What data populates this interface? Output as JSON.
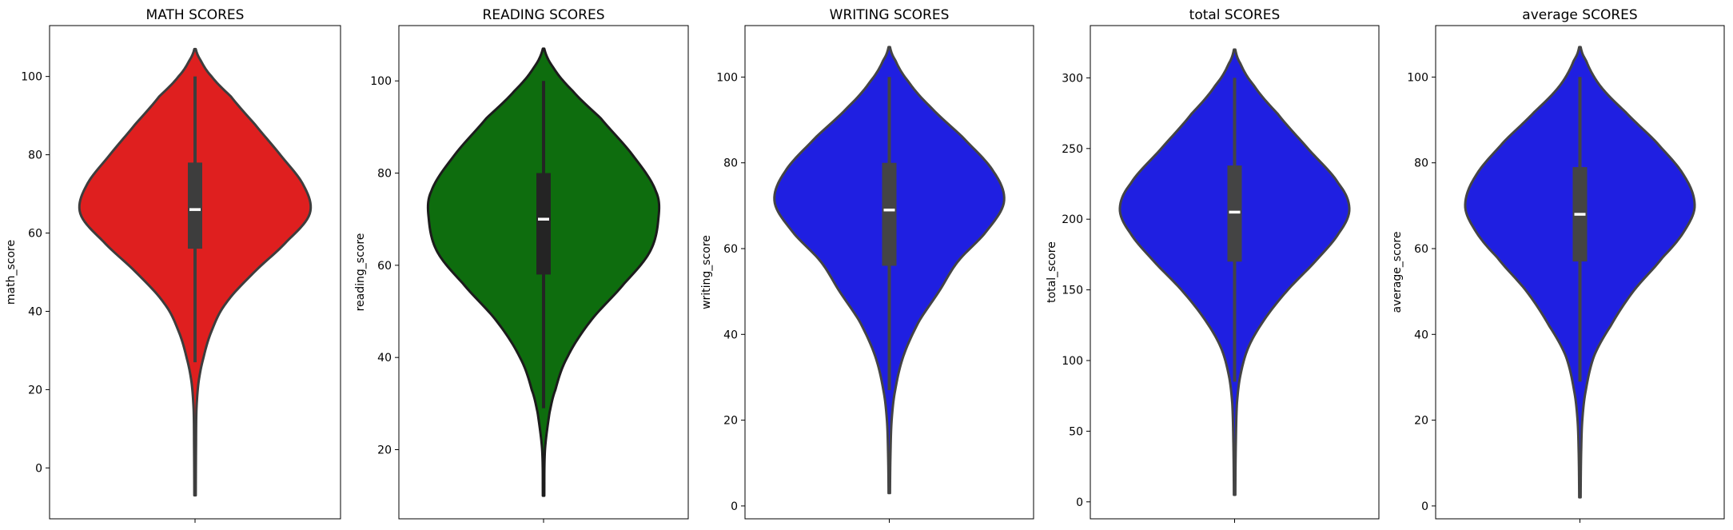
{
  "chart_data": [
    {
      "type": "violin",
      "title": "MATH SCORES",
      "ylabel": "math_score",
      "ylim": [
        -13,
        113
      ],
      "yticks": [
        0,
        20,
        40,
        60,
        80,
        100
      ],
      "color": "#df1f1f",
      "edge_color": "#3d3d3d",
      "box_color": "#3d3d3d",
      "violin": {
        "min": -7,
        "max": 107
      },
      "whisker": {
        "low": 27,
        "high": 100
      },
      "box": {
        "q1": 56,
        "median": 66,
        "q3": 78
      },
      "density": [
        [
          -7,
          0.006
        ],
        [
          5,
          0.008
        ],
        [
          15,
          0.012
        ],
        [
          22,
          0.03
        ],
        [
          28,
          0.07
        ],
        [
          35,
          0.14
        ],
        [
          42,
          0.26
        ],
        [
          50,
          0.5
        ],
        [
          58,
          0.78
        ],
        [
          65,
          0.97
        ],
        [
          72,
          0.92
        ],
        [
          80,
          0.72
        ],
        [
          88,
          0.5
        ],
        [
          95,
          0.3
        ],
        [
          100,
          0.14
        ],
        [
          104,
          0.05
        ],
        [
          107,
          0.006
        ]
      ]
    },
    {
      "type": "violin",
      "title": "READING SCORES",
      "ylabel": "reading_score",
      "ylim": [
        5,
        112
      ],
      "yticks": [
        20,
        40,
        60,
        80,
        100
      ],
      "color": "#0e6d0e",
      "edge_color": "#1c1c1c",
      "box_color": "#242424",
      "violin": {
        "min": 10,
        "max": 107
      },
      "whisker": {
        "low": 29,
        "high": 100
      },
      "box": {
        "q1": 58,
        "median": 70,
        "q3": 80
      },
      "density": [
        [
          10,
          0.006
        ],
        [
          20,
          0.012
        ],
        [
          28,
          0.05
        ],
        [
          33,
          0.1
        ],
        [
          40,
          0.2
        ],
        [
          48,
          0.4
        ],
        [
          56,
          0.68
        ],
        [
          63,
          0.9
        ],
        [
          70,
          0.97
        ],
        [
          76,
          0.95
        ],
        [
          84,
          0.75
        ],
        [
          92,
          0.48
        ],
        [
          98,
          0.24
        ],
        [
          103,
          0.08
        ],
        [
          107,
          0.006
        ]
      ]
    },
    {
      "type": "violin",
      "title": "WRITING SCORES",
      "ylabel": "writing_score",
      "ylim": [
        -3,
        112
      ],
      "yticks": [
        0,
        20,
        40,
        60,
        80,
        100
      ],
      "color": "#1f1fe1",
      "edge_color": "#444444",
      "box_color": "#444444",
      "violin": {
        "min": 3,
        "max": 107
      },
      "whisker": {
        "low": 27,
        "high": 100
      },
      "box": {
        "q1": 56,
        "median": 69,
        "q3": 80
      },
      "density": [
        [
          3,
          0.006
        ],
        [
          12,
          0.01
        ],
        [
          20,
          0.02
        ],
        [
          27,
          0.05
        ],
        [
          35,
          0.12
        ],
        [
          43,
          0.25
        ],
        [
          50,
          0.42
        ],
        [
          57,
          0.58
        ],
        [
          64,
          0.82
        ],
        [
          71,
          0.97
        ],
        [
          78,
          0.88
        ],
        [
          86,
          0.62
        ],
        [
          93,
          0.35
        ],
        [
          99,
          0.16
        ],
        [
          104,
          0.05
        ],
        [
          107,
          0.006
        ]
      ]
    },
    {
      "type": "violin",
      "title": "total SCORES",
      "ylabel": "total_score",
      "ylim": [
        -12,
        337
      ],
      "yticks": [
        0,
        50,
        100,
        150,
        200,
        250,
        300
      ],
      "color": "#1f1fe1",
      "edge_color": "#444444",
      "box_color": "#444444",
      "violin": {
        "min": 5,
        "max": 320
      },
      "whisker": {
        "low": 85,
        "high": 300
      },
      "box": {
        "q1": 170,
        "median": 205,
        "q3": 238
      },
      "density": [
        [
          5,
          0.006
        ],
        [
          40,
          0.01
        ],
        [
          70,
          0.02
        ],
        [
          90,
          0.05
        ],
        [
          110,
          0.12
        ],
        [
          130,
          0.26
        ],
        [
          150,
          0.45
        ],
        [
          170,
          0.68
        ],
        [
          190,
          0.88
        ],
        [
          207,
          0.97
        ],
        [
          225,
          0.88
        ],
        [
          250,
          0.62
        ],
        [
          275,
          0.36
        ],
        [
          295,
          0.16
        ],
        [
          310,
          0.05
        ],
        [
          320,
          0.006
        ]
      ]
    },
    {
      "type": "violin",
      "title": "average SCORES",
      "ylabel": "average_score",
      "ylim": [
        -3,
        112
      ],
      "yticks": [
        0,
        20,
        40,
        60,
        80,
        100
      ],
      "color": "#1f1fe1",
      "edge_color": "#444444",
      "box_color": "#444444",
      "violin": {
        "min": 2,
        "max": 107
      },
      "whisker": {
        "low": 29,
        "high": 100
      },
      "box": {
        "q1": 57,
        "median": 68,
        "q3": 79
      },
      "density": [
        [
          2,
          0.006
        ],
        [
          12,
          0.01
        ],
        [
          20,
          0.02
        ],
        [
          27,
          0.05
        ],
        [
          35,
          0.12
        ],
        [
          42,
          0.26
        ],
        [
          50,
          0.45
        ],
        [
          58,
          0.7
        ],
        [
          64,
          0.88
        ],
        [
          70,
          0.97
        ],
        [
          77,
          0.88
        ],
        [
          85,
          0.64
        ],
        [
          92,
          0.38
        ],
        [
          98,
          0.17
        ],
        [
          104,
          0.05
        ],
        [
          107,
          0.006
        ]
      ]
    }
  ]
}
